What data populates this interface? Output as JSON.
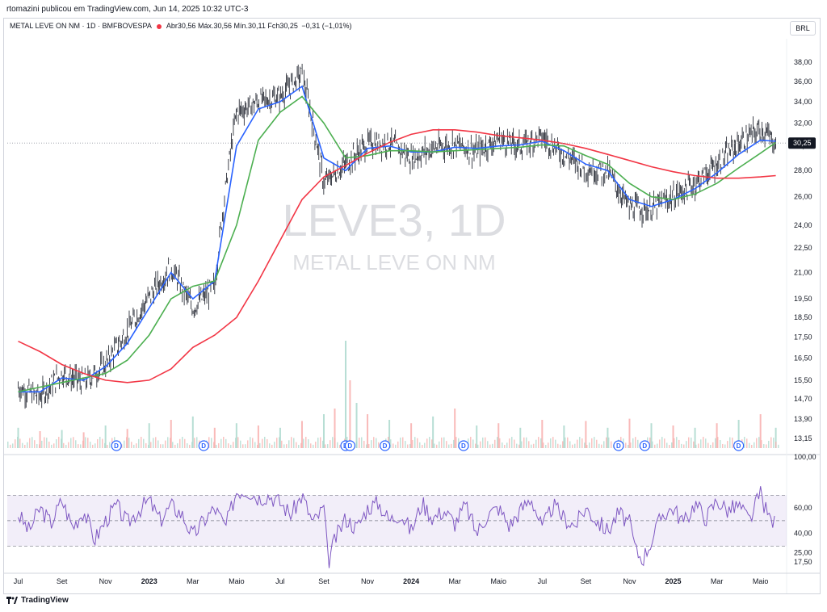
{
  "header": {
    "published_by": "rtomazini publicou em TradingView.com, Jun 14, 2025 10:32 UTC-3",
    "symbol_line": "METAL LEVE ON NM · 1D · BMFBOVESPA",
    "open": "Abr30,56",
    "high": "Máx.30,56",
    "low": "Mín.30,11",
    "close": "Fch30,25",
    "change": "−0,31 (−1,01%)",
    "currency": "BRL"
  },
  "watermark": {
    "ticker": "LEVE3, 1D",
    "name": "METAL LEVE ON NM"
  },
  "footer": {
    "brand": "TradingView"
  },
  "colors": {
    "up": "#089981",
    "down": "#f23645",
    "ma_fast": "#2962ff",
    "ma_mid": "#4caf50",
    "ma_slow": "#f23645",
    "rsi": "#7e57c2"
  },
  "chart_data": [
    {
      "type": "line",
      "panel": "price",
      "log_scale": true,
      "ylim": [
        12.8,
        39.5
      ],
      "y_ticks": [
        "38,00",
        "36,00",
        "34,00",
        "32,00",
        "30,00",
        "28,00",
        "26,00",
        "24,00",
        "22,50",
        "21,00",
        "19,50",
        "18,50",
        "17,50",
        "16,50",
        "15,50",
        "14,70",
        "13,90",
        "13,15"
      ],
      "y_tick_values": [
        38,
        36,
        34,
        32,
        30,
        28,
        26,
        24,
        22.5,
        21,
        19.5,
        18.5,
        17.5,
        16.5,
        15.5,
        14.7,
        13.9,
        13.15
      ],
      "last_price_label": "30,25",
      "last_price": 30.25,
      "x_labels": [
        "Jul",
        "Set",
        "Nov",
        "2023",
        "Mar",
        "Maio",
        "Jul",
        "Set",
        "Nov",
        "2024",
        "Mar",
        "Maio",
        "Jul",
        "Set",
        "Nov",
        "2025",
        "Mar",
        "Maio"
      ],
      "x_label_months": [
        0,
        2,
        4,
        6,
        8,
        10,
        12,
        14,
        16,
        18,
        20,
        22,
        24,
        26,
        28,
        30,
        32,
        34
      ],
      "dividend_marker": "D",
      "dividend_months": [
        4.5,
        8.5,
        15.0,
        15.2,
        16.8,
        20.4,
        27.5,
        28.7,
        33.0
      ],
      "price_path_months": [
        0,
        1,
        2,
        3,
        4,
        5,
        6,
        7,
        8,
        9,
        10,
        11,
        12,
        13,
        14,
        15,
        16,
        17,
        18,
        19,
        20,
        21,
        22,
        23,
        24,
        25,
        26,
        27,
        28,
        29,
        30,
        31,
        32,
        33,
        34,
        34.7
      ],
      "price_path_values": [
        15.2,
        14.8,
        15.8,
        15.4,
        16.2,
        17.8,
        19.6,
        21.3,
        19.0,
        20.2,
        33.0,
        34.0,
        34.5,
        36.8,
        27.0,
        28.5,
        30.2,
        30.3,
        29.0,
        29.8,
        30.2,
        29.5,
        30.6,
        30.0,
        30.8,
        29.3,
        28.2,
        27.9,
        25.2,
        25.1,
        26.0,
        27.0,
        28.5,
        30.2,
        31.5,
        30.25
      ],
      "series": [
        {
          "name": "",
          "role": "ma_fast",
          "x": [
            0,
            1,
            2,
            3,
            4,
            5,
            6,
            7,
            8,
            9,
            10,
            11,
            12,
            13,
            14,
            15,
            16,
            17,
            18,
            19,
            20,
            21,
            22,
            23,
            24,
            25,
            26,
            27,
            28,
            29,
            30,
            31,
            32,
            33,
            34,
            34.7
          ],
          "values": [
            15.0,
            15.0,
            15.6,
            15.5,
            16.1,
            17.2,
            19.0,
            21.0,
            19.5,
            20.5,
            30.0,
            33.3,
            34.0,
            35.5,
            29.0,
            28.0,
            29.8,
            30.0,
            29.5,
            29.5,
            29.9,
            29.8,
            30.0,
            30.1,
            30.4,
            29.6,
            28.5,
            28.0,
            25.8,
            25.3,
            25.8,
            26.6,
            27.8,
            29.3,
            30.5,
            30.4
          ]
        },
        {
          "name": "",
          "role": "ma_mid",
          "x": [
            0,
            1,
            2,
            3,
            4,
            5,
            6,
            7,
            8,
            9,
            10,
            11,
            12,
            13,
            14,
            15,
            16,
            17,
            18,
            19,
            20,
            21,
            22,
            23,
            24,
            25,
            26,
            27,
            28,
            29,
            30,
            31,
            32,
            33,
            34,
            34.7
          ],
          "values": [
            15.0,
            15.2,
            15.4,
            15.6,
            15.8,
            16.4,
            17.6,
            19.5,
            20.2,
            20.5,
            24.0,
            30.5,
            33.0,
            34.5,
            32.0,
            29.0,
            29.2,
            29.6,
            29.6,
            29.5,
            29.6,
            29.7,
            29.8,
            29.9,
            30.1,
            30.0,
            29.2,
            28.5,
            27.0,
            26.0,
            25.8,
            26.2,
            27.0,
            28.2,
            29.4,
            30.3
          ]
        },
        {
          "name": "",
          "role": "ma_slow",
          "x": [
            0,
            1,
            2,
            3,
            4,
            5,
            6,
            7,
            8,
            9,
            10,
            11,
            12,
            13,
            14,
            15,
            16,
            17,
            18,
            19,
            20,
            21,
            22,
            23,
            24,
            25,
            26,
            27,
            28,
            29,
            30,
            31,
            32,
            33,
            34,
            34.7
          ],
          "values": [
            17.3,
            16.8,
            16.2,
            15.8,
            15.5,
            15.4,
            15.5,
            16.0,
            17.0,
            17.6,
            18.5,
            20.5,
            23.0,
            25.8,
            27.5,
            28.4,
            29.4,
            30.3,
            31.0,
            31.4,
            31.4,
            31.2,
            30.9,
            30.7,
            30.5,
            30.2,
            29.8,
            29.3,
            28.8,
            28.3,
            27.9,
            27.6,
            27.4,
            27.4,
            27.5,
            27.6
          ]
        }
      ]
    },
    {
      "type": "line",
      "panel": "rsi",
      "ylim": [
        10,
        100
      ],
      "y_ticks": [
        "100,00",
        "60,00",
        "40,00",
        "25,00",
        "17,50"
      ],
      "y_tick_values": [
        100,
        60,
        40,
        25,
        17.5
      ],
      "band": [
        30,
        70
      ],
      "series": [
        {
          "name": "",
          "role": "rsi",
          "x": [
            0,
            0.5,
            1,
            1.5,
            2,
            2.5,
            3,
            3.5,
            4,
            4.5,
            5,
            5.5,
            6,
            6.5,
            7,
            7.5,
            8,
            8.5,
            9,
            9.5,
            10,
            10.5,
            11,
            11.5,
            12,
            12.5,
            13,
            13.5,
            14,
            14.2,
            14.5,
            15,
            15.5,
            16,
            16.5,
            17,
            17.5,
            18,
            18.5,
            19,
            19.5,
            20,
            20.5,
            21,
            21.5,
            22,
            22.5,
            23,
            23.5,
            24,
            24.5,
            25,
            25.5,
            26,
            26.5,
            27,
            27.5,
            28,
            28.3,
            28.6,
            29,
            29.5,
            30,
            30.5,
            31,
            31.5,
            32,
            32.5,
            33,
            33.5,
            34,
            34.3,
            34.7
          ],
          "values": [
            55,
            42,
            60,
            48,
            66,
            45,
            58,
            35,
            50,
            62,
            48,
            58,
            66,
            50,
            62,
            55,
            38,
            50,
            60,
            45,
            73,
            74,
            68,
            70,
            64,
            55,
            70,
            48,
            60,
            17,
            35,
            52,
            44,
            60,
            64,
            50,
            56,
            42,
            64,
            52,
            58,
            48,
            62,
            40,
            55,
            60,
            46,
            58,
            68,
            44,
            62,
            52,
            46,
            60,
            50,
            42,
            56,
            48,
            26,
            20,
            34,
            55,
            60,
            48,
            64,
            52,
            66,
            58,
            62,
            50,
            72,
            55,
            47
          ]
        }
      ]
    },
    {
      "type": "bar",
      "panel": "volume",
      "x": [
        0,
        1,
        2,
        3,
        4,
        5,
        6,
        7,
        8,
        9,
        10,
        11,
        12,
        13,
        14,
        14.5,
        15,
        15.2,
        15.5,
        16,
        17,
        18,
        19,
        20,
        21,
        22,
        23,
        24,
        25,
        26,
        27,
        28,
        29,
        30,
        31,
        32,
        33,
        34,
        34.7
      ],
      "values": [
        18,
        15,
        16,
        14,
        20,
        17,
        22,
        25,
        28,
        18,
        22,
        20,
        18,
        24,
        30,
        35,
        95,
        60,
        40,
        30,
        25,
        22,
        28,
        35,
        20,
        22,
        18,
        25,
        20,
        24,
        18,
        26,
        22,
        20,
        18,
        22,
        25,
        30,
        18
      ]
    }
  ]
}
